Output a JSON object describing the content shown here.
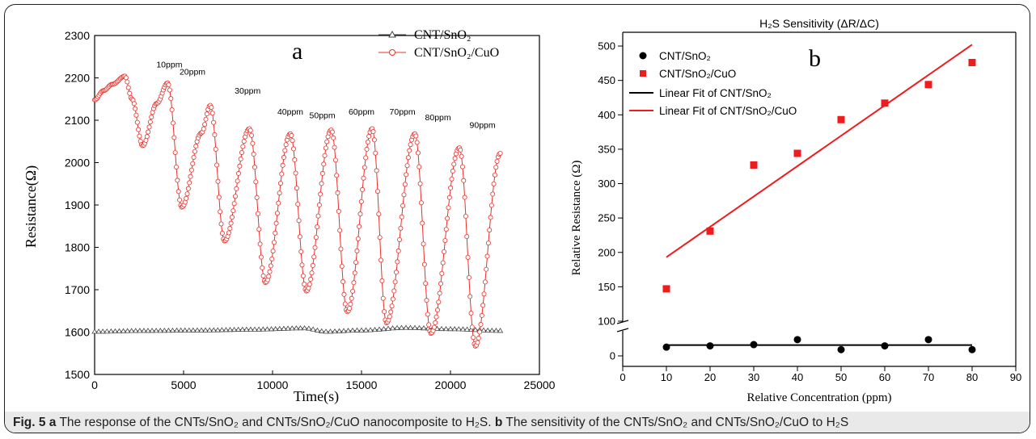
{
  "caption": {
    "fig": "Fig. 5",
    "a": "a",
    "text_a": "The response of the CNTs/SnO₂ and CNTs/SnO₂/CuO nanocomposite to H₂S.",
    "b": "b",
    "text_b": "The sensitivity of the CNTs/SnO₂ and CNTs/SnO₂/CuO to H₂S"
  },
  "chart_data": [
    {
      "type": "line",
      "panel_label": "a",
      "xlabel": "Time(s)",
      "ylabel": "Resistance(Ω)",
      "xlim": [
        0,
        25000
      ],
      "ylim": [
        1500,
        2300
      ],
      "xticks": [
        "0",
        "5000",
        "10000",
        "15000",
        "20000",
        "25000"
      ],
      "yticks": [
        "1500",
        "1600",
        "1700",
        "1800",
        "1900",
        "2000",
        "2100",
        "2200",
        "2300"
      ],
      "legend_position": "top-right",
      "colors": {
        "cnt_sno2": "#444444",
        "cnt_sno2_cuo": "#e8302a"
      },
      "series": [
        {
          "name": "CNT/SnO₂",
          "marker": "triangle",
          "x": [
            0,
            3000,
            6000,
            9000,
            11800,
            13000,
            15000,
            17500,
            20000,
            22800
          ],
          "y": [
            1601,
            1603,
            1604,
            1606,
            1609,
            1601,
            1604,
            1610,
            1607,
            1603
          ]
        },
        {
          "name": "CNT/SnO₂/CuO",
          "marker": "circle",
          "x": [
            0,
            500,
            1000,
            1700,
            2100,
            2700,
            3500,
            4100,
            4900,
            6000,
            6500,
            7300,
            8700,
            9600,
            11000,
            11900,
            13300,
            14200,
            15600,
            16400,
            18000,
            18900,
            20500,
            21400,
            22800
          ],
          "y": [
            2148,
            2170,
            2185,
            2204,
            2150,
            2040,
            2140,
            2188,
            1895,
            2070,
            2135,
            1815,
            2080,
            1717,
            2068,
            1697,
            2077,
            1648,
            2080,
            1622,
            2068,
            1597,
            2035,
            1567,
            2022
          ]
        }
      ],
      "annotations": [
        {
          "text": "10ppm",
          "x": 4200,
          "y": 2225
        },
        {
          "text": "20ppm",
          "x": 5500,
          "y": 2208
        },
        {
          "text": "30ppm",
          "x": 8600,
          "y": 2163
        },
        {
          "text": "40ppm",
          "x": 11000,
          "y": 2113
        },
        {
          "text": "50ppm",
          "x": 12800,
          "y": 2105
        },
        {
          "text": "60ppm",
          "x": 15000,
          "y": 2113
        },
        {
          "text": "70ppm",
          "x": 17300,
          "y": 2113
        },
        {
          "text": "80ppm",
          "x": 19300,
          "y": 2100
        },
        {
          "text": "90ppm",
          "x": 21800,
          "y": 2082
        }
      ]
    },
    {
      "type": "scatter",
      "panel_label": "b",
      "title": "H₂S Sensitivity (ΔR/ΔC)",
      "xlabel": "Relative Concentration (ppm)",
      "ylabel": "Relative Resistance (Ω)",
      "xlim": [
        0,
        90
      ],
      "ylim_top": [
        100,
        520
      ],
      "ylim_bottom": [
        0,
        20
      ],
      "axis_break": true,
      "xticks": [
        "0",
        "10",
        "20",
        "30",
        "40",
        "50",
        "60",
        "70",
        "80",
        "90"
      ],
      "yticks_top": [
        "100",
        "150",
        "200",
        "250",
        "300",
        "350",
        "400",
        "450",
        "500"
      ],
      "yticks_bottom": [
        "0"
      ],
      "legend_position": "top-left",
      "colors": {
        "cnt_sno2": "#000000",
        "cnt_sno2_cuo": "#ee1c1c",
        "fit_black": "#000000",
        "fit_red": "#ee1c1c"
      },
      "series": [
        {
          "name": "CNT/SnO₂",
          "marker": "circle",
          "x": [
            10,
            20,
            30,
            40,
            50,
            60,
            70,
            80
          ],
          "y": [
            7,
            8,
            9,
            13,
            5,
            8,
            13,
            5
          ]
        },
        {
          "name": "CNT/SnO₂/CuO",
          "marker": "square",
          "x": [
            10,
            20,
            30,
            40,
            50,
            60,
            70,
            80
          ],
          "y": [
            147,
            231,
            327,
            344,
            393,
            417,
            444,
            476
          ]
        }
      ],
      "fits": [
        {
          "name": "Linear Fit of  CNT/SnO₂",
          "x": [
            10,
            80
          ],
          "y": [
            8.6,
            8.6
          ]
        },
        {
          "name": "Linear Fit of  CNT/SnO₂/CuO",
          "x": [
            10,
            80
          ],
          "y": [
            193,
            502
          ]
        }
      ]
    }
  ]
}
